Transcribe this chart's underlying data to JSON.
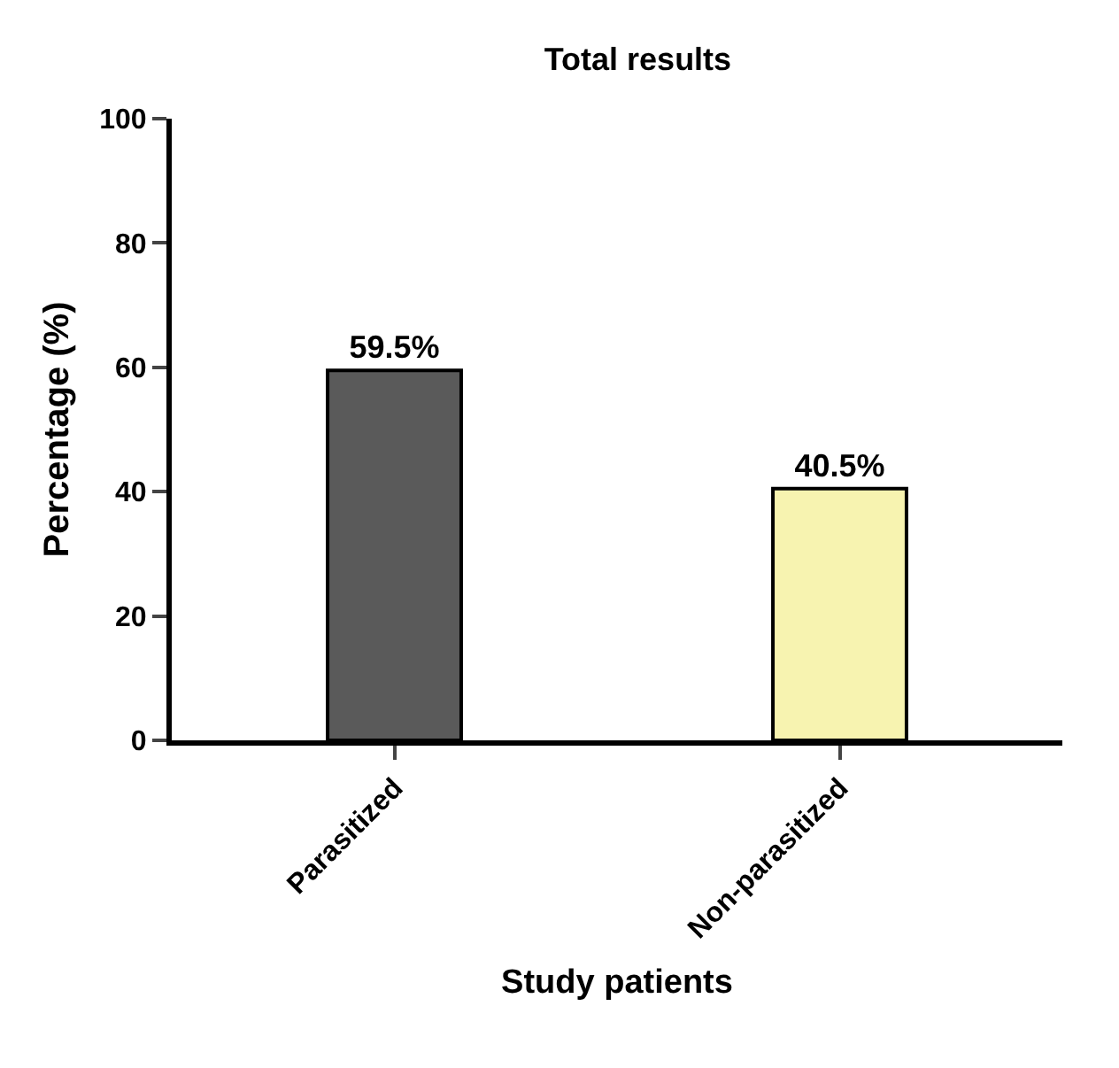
{
  "chart_data": {
    "type": "bar",
    "title": "Total results",
    "xlabel": "Study patients",
    "ylabel": "Percentage (%)",
    "categories": [
      "Parasitized",
      "Non-parasitized"
    ],
    "values": [
      59.5,
      40.5
    ],
    "colors": [
      "#5a5a5a",
      "#f7f3b0"
    ],
    "value_labels": [
      "59.5%",
      "40.5%"
    ],
    "ylim": [
      0,
      100
    ],
    "yticks": [
      0,
      20,
      40,
      60,
      80,
      100
    ],
    "grid": false
  }
}
